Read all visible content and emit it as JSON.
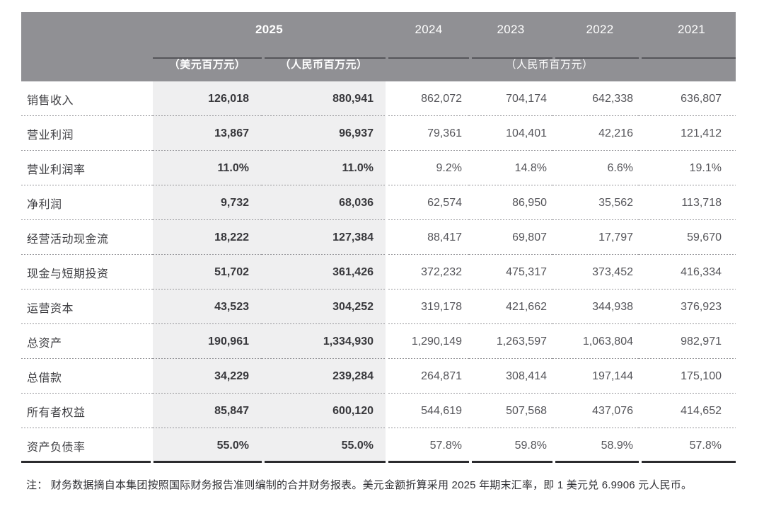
{
  "table": {
    "header": {
      "year_2025": "2025",
      "unit_usd": "（美元百万元）",
      "unit_rmb": "（人民币百万元）",
      "years": [
        "2024",
        "2023",
        "2022",
        "2021"
      ],
      "unit_rmb_group": "（人民币百万元）"
    },
    "rows": [
      {
        "label": "销售收入",
        "usd": "126,018",
        "rmb": "880,941",
        "y2024": "862,072",
        "y2023": "704,174",
        "y2022": "642,338",
        "y2021": "636,807"
      },
      {
        "label": "营业利润",
        "usd": "13,867",
        "rmb": "96,937",
        "y2024": "79,361",
        "y2023": "104,401",
        "y2022": "42,216",
        "y2021": "121,412"
      },
      {
        "label": "营业利润率",
        "usd": "11.0%",
        "rmb": "11.0%",
        "y2024": "9.2%",
        "y2023": "14.8%",
        "y2022": "6.6%",
        "y2021": "19.1%"
      },
      {
        "label": "净利润",
        "usd": "9,732",
        "rmb": "68,036",
        "y2024": "62,574",
        "y2023": "86,950",
        "y2022": "35,562",
        "y2021": "113,718"
      },
      {
        "label": "经营活动现金流",
        "usd": "18,222",
        "rmb": "127,384",
        "y2024": "88,417",
        "y2023": "69,807",
        "y2022": "17,797",
        "y2021": "59,670"
      },
      {
        "label": "现金与短期投资",
        "usd": "51,702",
        "rmb": "361,426",
        "y2024": "372,232",
        "y2023": "475,317",
        "y2022": "373,452",
        "y2021": "416,334"
      },
      {
        "label": "运营资本",
        "usd": "43,523",
        "rmb": "304,252",
        "y2024": "319,178",
        "y2023": "421,662",
        "y2022": "344,938",
        "y2021": "376,923"
      },
      {
        "label": "总资产",
        "usd": "190,961",
        "rmb": "1,334,930",
        "y2024": "1,290,149",
        "y2023": "1,263,597",
        "y2022": "1,063,804",
        "y2021": "982,971"
      },
      {
        "label": "总借款",
        "usd": "34,229",
        "rmb": "239,284",
        "y2024": "264,871",
        "y2023": "308,414",
        "y2022": "197,144",
        "y2021": "175,100"
      },
      {
        "label": "所有者权益",
        "usd": "85,847",
        "rmb": "600,120",
        "y2024": "544,619",
        "y2023": "507,568",
        "y2022": "437,076",
        "y2021": "414,652"
      },
      {
        "label": "资产负债率",
        "usd": "55.0%",
        "rmb": "55.0%",
        "y2024": "57.8%",
        "y2023": "59.8%",
        "y2022": "58.9%",
        "y2021": "57.8%"
      }
    ]
  },
  "note": "注： 财务数据摘自本集团按照国际财务报告准则编制的合并财务报表。美元金额折算采用 2025 年期末汇率，即 1 美元兑 6.9906 元人民币。",
  "colors": {
    "header_bg": "#909094",
    "highlight_band": "#efeff0",
    "rule_dark": "#2b2b2e",
    "header_underline": "#55555a",
    "dotted_separator": "#96969a",
    "text_bold": "#38383c",
    "text_regular": "#55555a"
  }
}
